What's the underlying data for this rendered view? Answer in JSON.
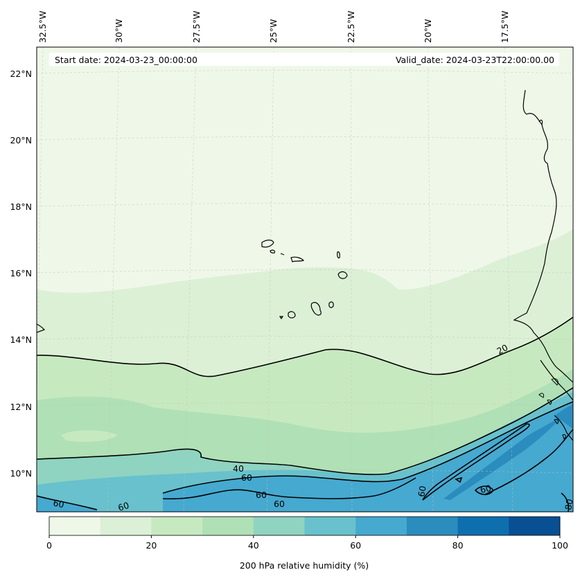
{
  "map": {
    "start_label": "Start date: 2024-03-23_00:00:00",
    "valid_label": "Valid_date: 2024-03-23T22:00:00.00",
    "lon_labels": [
      "32.5°W",
      "30°W",
      "27.5°W",
      "25°W",
      "22.5°W",
      "20°W",
      "17.5°W"
    ],
    "lat_labels": [
      "22°N",
      "20°N",
      "18°N",
      "16°N",
      "14°N",
      "12°N",
      "10°N"
    ],
    "contour_labels": [
      "20",
      "40",
      "60",
      "60",
      "60",
      "60",
      "60",
      "60",
      "60",
      "80"
    ],
    "variable": "200 hPa relative humidity (%)"
  },
  "colorbar": {
    "ticks": [
      "0",
      "20",
      "40",
      "60",
      "80",
      "100"
    ],
    "colors": [
      "#f7fcf0",
      "#e0f3db",
      "#ccebc5",
      "#a8ddb5",
      "#7bccc4",
      "#4eb3d3",
      "#2b8cbe",
      "#0868ac",
      "#084081",
      "#08306b"
    ],
    "bins": [
      "#eff8e8",
      "#dbf0d6",
      "#c7e9c0",
      "#b0e0b6",
      "#8fd3c1",
      "#68c1cc",
      "#46a9d0",
      "#2b8cbe",
      "#0e6fae",
      "#084f93"
    ]
  }
}
